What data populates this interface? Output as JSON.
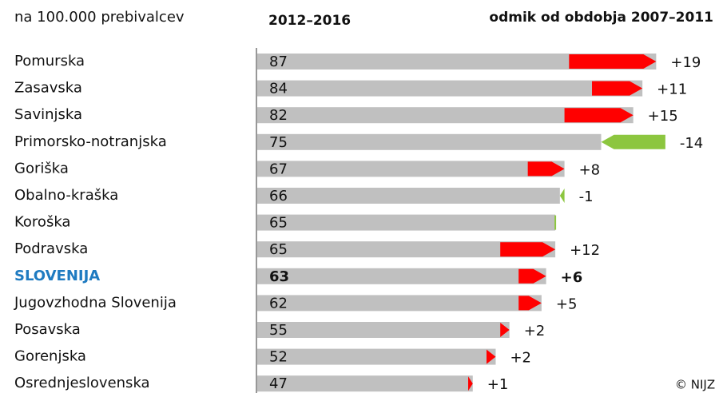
{
  "chart_data": {
    "type": "bar-change",
    "subtitle": "na 100.000  prebivalcev",
    "period": "2012–2016",
    "change_title": "odmik od obdobja 2007–2011",
    "credit": "© NIJZ",
    "categories": [
      "Pomurska",
      "Zasavska",
      "Savinjska",
      "Primorsko-notranjska",
      "Goriška",
      "Obalno-kraška",
      "Koroška",
      "Podravska",
      "SLOVENIJA",
      "Jugovzhodna Slovenija",
      "Posavska",
      "Gorenjska",
      "Osrednjeslovenska"
    ],
    "values": [
      87,
      84,
      82,
      75,
      67,
      66,
      65,
      65,
      63,
      62,
      55,
      52,
      47
    ],
    "changes": [
      19,
      11,
      15,
      -14,
      8,
      -1,
      0,
      12,
      6,
      5,
      2,
      2,
      1
    ],
    "change_labels": [
      "+19",
      "+11",
      "+15",
      "-14",
      "+8",
      "-1",
      null,
      "+12",
      "+6",
      "+5",
      "+2",
      "+2",
      "+1"
    ],
    "bar_color": "#c0c0c0",
    "increase_color": "#ff0000",
    "decrease_color": "#8cc63f",
    "highlight": 8,
    "highlight_color": "#1f7bc1"
  }
}
